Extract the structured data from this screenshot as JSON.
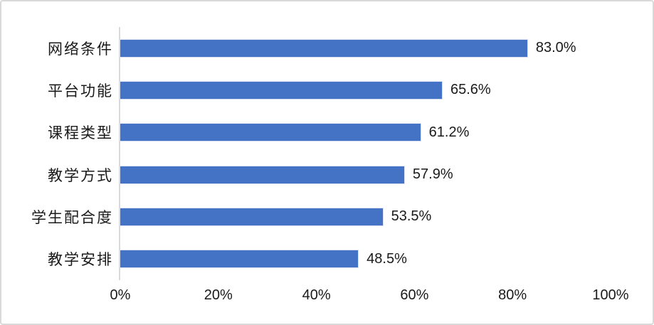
{
  "chart_data": {
    "type": "bar",
    "orientation": "horizontal",
    "title": "",
    "xlabel": "",
    "ylabel": "",
    "categories": [
      "网络条件",
      "平台功能",
      "课程类型",
      "教学方式",
      "学生配合度",
      "教学安排"
    ],
    "values": [
      83.0,
      65.6,
      61.2,
      57.9,
      53.5,
      48.5
    ],
    "value_labels": [
      "83.0%",
      "65.6%",
      "61.2%",
      "57.9%",
      "53.5%",
      "48.5%"
    ],
    "x_ticks": [
      "0%",
      "20%",
      "40%",
      "60%",
      "80%",
      "100%"
    ],
    "xlim": [
      0,
      100
    ],
    "grid": "off",
    "legend": "none",
    "bar_color": "#4472C4",
    "axis_line_color": "#D9D9D9",
    "text_color": "#1a1a1a"
  }
}
